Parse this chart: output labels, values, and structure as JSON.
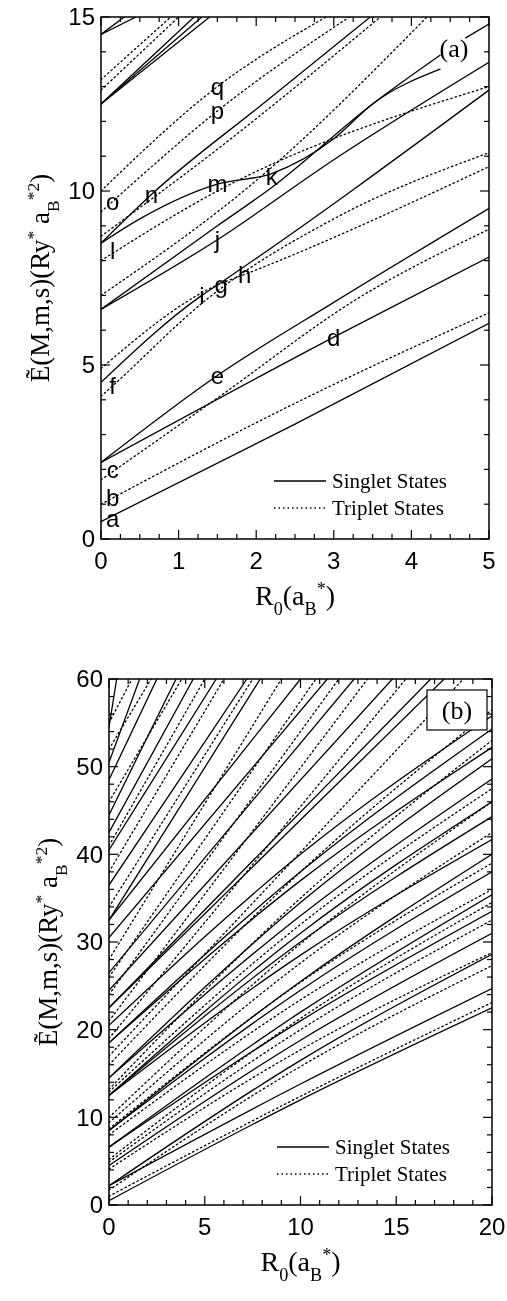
{
  "chart_data": [
    {
      "type": "line",
      "xlabel": "R$_{0}$(a$_{B}$$^{*}$)",
      "ylabel": "Ẽ(M,m,s)(Ry$^{*}$ a$_{B}$$^{*2}$)",
      "xlim": [
        0,
        5
      ],
      "ylim": [
        0,
        15
      ],
      "xticks": [
        0,
        {
          "value": 0.25,
          "label": null
        },
        {
          "value": 0.5,
          "label": null
        },
        {
          "value": 0.75,
          "label": null
        },
        1,
        {
          "value": 1.25,
          "label": null
        },
        {
          "value": 1.5,
          "label": null
        },
        {
          "value": 1.75,
          "label": null
        },
        2,
        {
          "value": 2.25,
          "label": null
        },
        {
          "value": 2.5,
          "label": null
        },
        {
          "value": 2.75,
          "label": null
        },
        3,
        {
          "value": 3.25,
          "label": null
        },
        {
          "value": 3.5,
          "label": null
        },
        {
          "value": 3.75,
          "label": null
        },
        4,
        {
          "value": 4.25,
          "label": null
        },
        {
          "value": 4.5,
          "label": null
        },
        {
          "value": 4.75,
          "label": null
        },
        5
      ],
      "yticks": [
        0,
        {
          "value": 1,
          "label": null
        },
        {
          "value": 2,
          "label": null
        },
        {
          "value": 3,
          "label": null
        },
        {
          "value": 4,
          "label": null
        },
        5,
        {
          "value": 6,
          "label": null
        },
        {
          "value": 7,
          "label": null
        },
        {
          "value": 8,
          "label": null
        },
        {
          "value": 9,
          "label": null
        },
        10,
        {
          "value": 11,
          "label": null
        },
        {
          "value": 12,
          "label": null
        },
        {
          "value": 13,
          "label": null
        },
        {
          "value": 14,
          "label": null
        },
        15
      ],
      "legend": "bottom right",
      "annotations": [
        "(a)",
        {
          "text": "a",
          "x": 0.15,
          "y": 0.6
        },
        {
          "text": "b",
          "x": 0.15,
          "y": 1.2
        },
        {
          "text": "c",
          "x": 0.15,
          "y": 2.0
        },
        {
          "text": "d",
          "x": 3,
          "y": 5.8
        },
        {
          "text": "e",
          "x": 1.5,
          "y": 4.7
        },
        {
          "text": "f",
          "x": 0.15,
          "y": 4.4
        },
        {
          "text": "g",
          "x": 1.55,
          "y": 7.3
        },
        {
          "text": "h",
          "x": 1.85,
          "y": 7.6
        },
        {
          "text": "i",
          "x": 1.3,
          "y": 7.0
        },
        {
          "text": "j",
          "x": 1.5,
          "y": 8.6
        },
        {
          "text": "k",
          "x": 2.2,
          "y": 10.4
        },
        {
          "text": "l",
          "x": 0.15,
          "y": 8.3
        },
        {
          "text": "m",
          "x": 1.5,
          "y": 10.2
        },
        {
          "text": "n",
          "x": 0.65,
          "y": 9.9
        },
        {
          "text": "o",
          "x": 0.15,
          "y": 9.7
        },
        {
          "text": "p",
          "x": 1.5,
          "y": 12.3
        },
        {
          "text": "q",
          "x": 1.5,
          "y": 13.0
        }
      ],
      "series": [
        {
          "type": "line",
          "name": "Singlet States",
          "line_style": "solid",
          "color": "#000000",
          "x": [
            0,
            2.5,
            5
          ],
          "values": [
            0.5,
            3.3,
            6.2
          ]
        },
        {
          "type": "line",
          "line_style": "solid",
          "color": "#000000",
          "x": [
            0,
            3,
            5
          ],
          "values": [
            2.2,
            5.8,
            8.1
          ]
        },
        {
          "type": "line",
          "line_style": "solid",
          "color": "#000000",
          "x": [
            0,
            1.5,
            3,
            5
          ],
          "values": [
            2.2,
            4.7,
            6.8,
            9.5
          ]
        },
        {
          "type": "line",
          "line_style": "solid",
          "color": "#000000",
          "x": [
            0,
            1.3,
            1.5,
            5
          ],
          "values": [
            4.5,
            7.0,
            7.3,
            12.9
          ]
        },
        {
          "type": "line",
          "line_style": "solid",
          "color": "#000000",
          "x": [
            0,
            1.5,
            3,
            5
          ],
          "values": [
            6.6,
            8.6,
            10.9,
            13.7
          ]
        },
        {
          "type": "line",
          "line_style": "solid",
          "color": "#000000",
          "x": [
            0,
            1.5,
            2.2,
            3.5,
            4.37
          ],
          "values": [
            6.6,
            9.0,
            10.1,
            12.5,
            13.9
          ]
        },
        {
          "type": "line",
          "line_style": "solid",
          "color": "#000000",
          "x": [
            0,
            0.65,
            2.14,
            3.47
          ],
          "values": [
            8.5,
            9.9,
            12.6,
            15
          ]
        },
        {
          "type": "line",
          "line_style": "solid",
          "color": "#000000",
          "x": [
            0,
            0.5,
            1.5,
            2.2,
            3,
            3.5,
            4.37
          ],
          "values": [
            8.5,
            9.2,
            10.2,
            10.5,
            11.5,
            12.5,
            13.5
          ]
        },
        {
          "type": "line",
          "line_style": "solid",
          "color": "#000000",
          "x": [
            0,
            1.2
          ],
          "values": [
            12.5,
            15
          ]
        },
        {
          "type": "line",
          "line_style": "solid",
          "color": "#000000",
          "x": [
            0,
            1.3
          ],
          "values": [
            12.5,
            15
          ]
        },
        {
          "type": "line",
          "line_style": "solid",
          "color": "#000000",
          "x": [
            0,
            1.4
          ],
          "values": [
            12.5,
            15
          ]
        },
        {
          "type": "line",
          "line_style": "solid",
          "color": "#000000",
          "x": [
            0,
            0.3
          ],
          "values": [
            14.5,
            15
          ]
        },
        {
          "type": "line",
          "line_style": "solid",
          "color": "#000000",
          "x": [
            0,
            0.45
          ],
          "values": [
            14.5,
            15
          ]
        },
        {
          "type": "line",
          "line_style": "solid",
          "color": "#000000",
          "x": [
            4.7,
            5
          ],
          "values": [
            14.4,
            14.8
          ]
        },
        {
          "type": "line",
          "name": "Triplet States",
          "line_style": "dotted",
          "color": "#000000",
          "x": [
            0,
            2.5,
            5
          ],
          "values": [
            1.0,
            3.9,
            6.5
          ]
        },
        {
          "type": "line",
          "line_style": "dotted",
          "color": "#000000",
          "x": [
            0,
            1.5,
            3.3,
            5
          ],
          "values": [
            1.7,
            4.05,
            6.9,
            8.9
          ]
        },
        {
          "type": "line",
          "line_style": "dotted",
          "color": "#000000",
          "x": [
            0,
            0.15,
            1.37,
            3,
            5
          ],
          "values": [
            4.1,
            4.4,
            6.9,
            9.2,
            11.1
          ]
        },
        {
          "type": "line",
          "line_style": "dotted",
          "color": "#000000",
          "x": [
            0,
            1.5,
            1.85,
            5
          ],
          "values": [
            4.9,
            7.3,
            7.6,
            10.7
          ]
        },
        {
          "type": "line",
          "line_style": "dotted",
          "color": "#000000",
          "x": [
            0,
            1.5,
            5
          ],
          "values": [
            8.0,
            10.0,
            13.0
          ]
        },
        {
          "type": "line",
          "line_style": "dotted",
          "color": "#000000",
          "x": [
            0,
            1.5,
            3.6
          ],
          "values": [
            8.7,
            11.2,
            15
          ]
        },
        {
          "type": "line",
          "line_style": "dotted",
          "color": "#000000",
          "x": [
            0,
            0.15,
            1.5,
            3.2
          ],
          "values": [
            9.4,
            9.7,
            12.3,
            15
          ]
        },
        {
          "type": "line",
          "line_style": "dotted",
          "color": "#000000",
          "x": [
            0,
            1.5,
            2.9
          ],
          "values": [
            10.0,
            13.0,
            15
          ]
        },
        {
          "type": "line",
          "line_style": "dotted",
          "color": "#000000",
          "x": [
            0,
            2,
            4.2
          ],
          "values": [
            7.0,
            10.3,
            15
          ]
        },
        {
          "type": "line",
          "line_style": "dotted",
          "color": "#000000",
          "x": [
            0,
            1.0
          ],
          "values": [
            12.9,
            15
          ]
        },
        {
          "type": "line",
          "line_style": "dotted",
          "color": "#000000",
          "x": [
            0,
            0.9
          ],
          "values": [
            13.2,
            15
          ]
        }
      ]
    },
    {
      "type": "line",
      "xlabel": "R$_{0}$(a$_{B}$$^{*}$)",
      "ylabel": "Ẽ(M,m,s)(Ry$^{*}$ a$_{B}$$^{*2}$)",
      "xlim": [
        0,
        20
      ],
      "ylim": [
        0,
        60
      ],
      "xticks": [
        0,
        {
          "value": 1,
          "label": null
        },
        {
          "value": 2,
          "label": null
        },
        {
          "value": 3,
          "label": null
        },
        {
          "value": 4,
          "label": null
        },
        5,
        {
          "value": 6,
          "label": null
        },
        {
          "value": 7,
          "label": null
        },
        {
          "value": 8,
          "label": null
        },
        {
          "value": 9,
          "label": null
        },
        10,
        {
          "value": 11,
          "label": null
        },
        {
          "value": 12,
          "label": null
        },
        {
          "value": 13,
          "label": null
        },
        {
          "value": 14,
          "label": null
        },
        15,
        {
          "value": 16,
          "label": null
        },
        {
          "value": 17,
          "label": null
        },
        {
          "value": 18,
          "label": null
        },
        {
          "value": 19,
          "label": null
        },
        20
      ],
      "yticks": [
        0,
        {
          "value": 2,
          "label": null
        },
        {
          "value": 4,
          "label": null
        },
        {
          "value": 6,
          "label": null
        },
        {
          "value": 8,
          "label": null
        },
        10,
        {
          "value": 12,
          "label": null
        },
        {
          "value": 14,
          "label": null
        },
        {
          "value": 16,
          "label": null
        },
        {
          "value": 18,
          "label": null
        },
        20,
        {
          "value": 22,
          "label": null
        },
        {
          "value": 24,
          "label": null
        },
        {
          "value": 26,
          "label": null
        },
        {
          "value": 28,
          "label": null
        },
        30,
        {
          "value": 32,
          "label": null
        },
        {
          "value": 34,
          "label": null
        },
        {
          "value": 36,
          "label": null
        },
        {
          "value": 38,
          "label": null
        },
        40,
        {
          "value": 42,
          "label": null
        },
        {
          "value": 44,
          "label": null
        },
        {
          "value": 46,
          "label": null
        },
        {
          "value": 48,
          "label": null
        },
        50,
        {
          "value": 52,
          "label": null
        },
        {
          "value": 54,
          "label": null
        },
        {
          "value": 56,
          "label": null
        },
        {
          "value": 58,
          "label": null
        },
        60
      ],
      "legend": "bottom right",
      "annotations": [
        "(b)"
      ],
      "series": [
        {
          "type": "line",
          "name": "Singlet States",
          "line_style": "solid",
          "color": "#000000",
          "x": [
            0,
            10,
            20
          ],
          "values": [
            0.5,
            12.0,
            22.5
          ]
        },
        {
          "type": "line",
          "line_style": "solid",
          "color": "#000000",
          "x": [
            0,
            10,
            20
          ],
          "values": [
            2.2,
            13.8,
            24.7
          ]
        },
        {
          "type": "line",
          "line_style": "solid",
          "color": "#000000",
          "x": [
            0,
            10,
            20
          ],
          "values": [
            2.2,
            16.5,
            28.6
          ]
        },
        {
          "type": "line",
          "line_style": "solid",
          "color": "#000000",
          "x": [
            0,
            10,
            20
          ],
          "values": [
            4.5,
            18.8,
            31.0
          ]
        },
        {
          "type": "line",
          "line_style": "solid",
          "color": "#000000",
          "x": [
            0,
            10,
            20
          ],
          "values": [
            6.6,
            21.0,
            33.5
          ]
        },
        {
          "type": "line",
          "line_style": "solid",
          "color": "#000000",
          "x": [
            0,
            10,
            20
          ],
          "values": [
            6.6,
            22.0,
            35.4
          ]
        },
        {
          "type": "line",
          "line_style": "solid",
          "color": "#000000",
          "x": [
            0,
            10,
            20
          ],
          "values": [
            8.5,
            24.5,
            38.0
          ]
        },
        {
          "type": "line",
          "line_style": "solid",
          "color": "#000000",
          "x": [
            0,
            10,
            20
          ],
          "values": [
            8.5,
            25.5,
            40.0
          ]
        },
        {
          "type": "line",
          "line_style": "solid",
          "color": "#000000",
          "x": [
            0,
            10,
            20
          ],
          "values": [
            12.5,
            28.5,
            41.7
          ]
        },
        {
          "type": "line",
          "line_style": "solid",
          "color": "#000000",
          "x": [
            0,
            10,
            20
          ],
          "values": [
            12.5,
            30.0,
            44.3
          ]
        },
        {
          "type": "line",
          "line_style": "solid",
          "color": "#000000",
          "x": [
            0,
            10,
            20
          ],
          "values": [
            12.5,
            31.0,
            46.0
          ]
        },
        {
          "type": "line",
          "line_style": "solid",
          "color": "#000000",
          "x": [
            0,
            10,
            20
          ],
          "values": [
            14.5,
            33.0,
            48.6
          ]
        },
        {
          "type": "line",
          "line_style": "solid",
          "color": "#000000",
          "x": [
            0,
            10,
            20
          ],
          "values": [
            14.5,
            34.5,
            50.9
          ]
        },
        {
          "type": "line",
          "line_style": "solid",
          "color": "#000000",
          "x": [
            0,
            10,
            20
          ],
          "values": [
            18.5,
            37.0,
            52.2
          ]
        },
        {
          "type": "line",
          "line_style": "solid",
          "color": "#000000",
          "x": [
            0,
            10,
            20
          ],
          "values": [
            18.5,
            38.0,
            54.3
          ]
        },
        {
          "type": "line",
          "line_style": "solid",
          "color": "#000000",
          "x": [
            0,
            10,
            20
          ],
          "values": [
            20.5,
            40.0,
            55.8
          ]
        },
        {
          "type": "line",
          "line_style": "solid",
          "color": "#000000",
          "x": [
            0,
            17.5
          ],
          "values": [
            22.5,
            60
          ]
        },
        {
          "type": "line",
          "line_style": "solid",
          "color": "#000000",
          "x": [
            0,
            16.8
          ],
          "values": [
            22.5,
            60
          ]
        },
        {
          "type": "line",
          "line_style": "solid",
          "color": "#000000",
          "x": [
            0,
            14.8
          ],
          "values": [
            24.5,
            60
          ]
        },
        {
          "type": "line",
          "line_style": "solid",
          "color": "#000000",
          "x": [
            0,
            12.8
          ],
          "values": [
            26.5,
            60
          ]
        },
        {
          "type": "line",
          "line_style": "solid",
          "color": "#000000",
          "x": [
            0,
            11.4
          ],
          "values": [
            30.5,
            60
          ]
        },
        {
          "type": "line",
          "line_style": "solid",
          "color": "#000000",
          "x": [
            0,
            10
          ],
          "values": [
            32.5,
            60
          ]
        },
        {
          "type": "line",
          "line_style": "solid",
          "color": "#000000",
          "x": [
            0,
            7.9
          ],
          "values": [
            32.5,
            60
          ]
        },
        {
          "type": "line",
          "line_style": "solid",
          "color": "#000000",
          "x": [
            0,
            7.2
          ],
          "values": [
            36.5,
            60
          ]
        },
        {
          "type": "line",
          "line_style": "solid",
          "color": "#000000",
          "x": [
            0,
            5.6
          ],
          "values": [
            40.5,
            60
          ]
        },
        {
          "type": "line",
          "line_style": "solid",
          "color": "#000000",
          "x": [
            0,
            4.4
          ],
          "values": [
            42.5,
            60
          ]
        },
        {
          "type": "line",
          "line_style": "solid",
          "color": "#000000",
          "x": [
            0,
            3.5
          ],
          "values": [
            44.5,
            60
          ]
        },
        {
          "type": "line",
          "line_style": "solid",
          "color": "#000000",
          "x": [
            0,
            2.5
          ],
          "values": [
            48.5,
            60
          ]
        },
        {
          "type": "line",
          "line_style": "solid",
          "color": "#000000",
          "x": [
            0,
            1.6
          ],
          "values": [
            50.5,
            60
          ]
        },
        {
          "type": "line",
          "line_style": "solid",
          "color": "#000000",
          "x": [
            0,
            0.4
          ],
          "values": [
            54.5,
            60
          ]
        },
        {
          "type": "line",
          "name": "Triplet States",
          "line_style": "dotted",
          "color": "#000000",
          "x": [
            0,
            10,
            20
          ],
          "values": [
            1.0,
            12.4,
            23.1
          ]
        },
        {
          "type": "line",
          "line_style": "dotted",
          "color": "#000000",
          "x": [
            0,
            10,
            20
          ],
          "values": [
            1.7,
            15.8,
            27.3
          ]
        },
        {
          "type": "line",
          "line_style": "dotted",
          "color": "#000000",
          "x": [
            0,
            10,
            20
          ],
          "values": [
            4.1,
            17.7,
            28.8
          ]
        },
        {
          "type": "line",
          "line_style": "dotted",
          "color": "#000000",
          "x": [
            0,
            10,
            20
          ],
          "values": [
            4.9,
            20.0,
            32.5
          ]
        },
        {
          "type": "line",
          "line_style": "dotted",
          "color": "#000000",
          "x": [
            0,
            10,
            20
          ],
          "values": [
            5.2,
            21.3,
            34.5
          ]
        },
        {
          "type": "line",
          "line_style": "dotted",
          "color": "#000000",
          "x": [
            0,
            10,
            20
          ],
          "values": [
            8.0,
            23.4,
            36.0
          ]
        },
        {
          "type": "line",
          "line_style": "dotted",
          "color": "#000000",
          "x": [
            0,
            10,
            20
          ],
          "values": [
            8.7,
            25.4,
            39.0
          ]
        },
        {
          "type": "line",
          "line_style": "dotted",
          "color": "#000000",
          "x": [
            0,
            10,
            20
          ],
          "values": [
            9.4,
            27.6,
            42.5
          ]
        },
        {
          "type": "line",
          "line_style": "dotted",
          "color": "#000000",
          "x": [
            0,
            10,
            20
          ],
          "values": [
            10.0,
            29.8,
            46.0
          ]
        },
        {
          "type": "line",
          "line_style": "dotted",
          "color": "#000000",
          "x": [
            0,
            10,
            20
          ],
          "values": [
            12.9,
            32.0,
            47.5
          ]
        },
        {
          "type": "line",
          "line_style": "dotted",
          "color": "#000000",
          "x": [
            0,
            10,
            20
          ],
          "values": [
            13.2,
            35.0,
            53.0
          ]
        },
        {
          "type": "line",
          "line_style": "dotted",
          "color": "#000000",
          "x": [
            0,
            10,
            20
          ],
          "values": [
            16.0,
            38.0,
            56.5
          ]
        },
        {
          "type": "line",
          "line_style": "dotted",
          "color": "#000000",
          "x": [
            0,
            18.5
          ],
          "values": [
            17.0,
            60
          ]
        },
        {
          "type": "line",
          "line_style": "dotted",
          "color": "#000000",
          "x": [
            0,
            15.5
          ],
          "values": [
            19.0,
            60
          ]
        },
        {
          "type": "line",
          "line_style": "dotted",
          "color": "#000000",
          "x": [
            0,
            13.5
          ],
          "values": [
            21.0,
            60
          ]
        },
        {
          "type": "line",
          "line_style": "dotted",
          "color": "#000000",
          "x": [
            0,
            12
          ],
          "values": [
            24.0,
            60
          ]
        },
        {
          "type": "line",
          "line_style": "dotted",
          "color": "#000000",
          "x": [
            0,
            10.8
          ],
          "values": [
            26.0,
            60
          ]
        },
        {
          "type": "line",
          "line_style": "dotted",
          "color": "#000000",
          "x": [
            0,
            9
          ],
          "values": [
            28.0,
            60
          ]
        },
        {
          "type": "line",
          "line_style": "dotted",
          "color": "#000000",
          "x": [
            0,
            7.5
          ],
          "values": [
            34.0,
            60
          ]
        },
        {
          "type": "line",
          "line_style": "dotted",
          "color": "#000000",
          "x": [
            0,
            6
          ],
          "values": [
            38.0,
            60
          ]
        },
        {
          "type": "line",
          "line_style": "dotted",
          "color": "#000000",
          "x": [
            0,
            5
          ],
          "values": [
            41.0,
            60
          ]
        },
        {
          "type": "line",
          "line_style": "dotted",
          "color": "#000000",
          "x": [
            0,
            3.8
          ],
          "values": [
            46.0,
            60
          ]
        },
        {
          "type": "line",
          "line_style": "dotted",
          "color": "#000000",
          "x": [
            0,
            2.2
          ],
          "values": [
            52.0,
            60
          ]
        },
        {
          "type": "line",
          "line_style": "dotted",
          "color": "#000000",
          "x": [
            0,
            1.2
          ],
          "values": [
            55.0,
            60
          ]
        }
      ]
    }
  ]
}
